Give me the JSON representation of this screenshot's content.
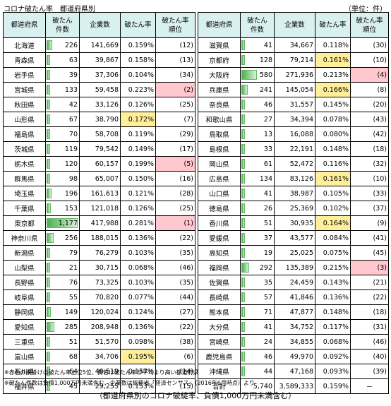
{
  "title": "コロナ破たん率　都道府県別",
  "unit": "（単位：件）",
  "headers": {
    "pref": "都道府県",
    "count": "破たん\n件数",
    "firms": "企業数",
    "rate": "破たん率",
    "rank": "破たん率\n順位"
  },
  "max_count": 1177,
  "left_rows": [
    {
      "pref": "北海道",
      "count": "226",
      "count_value": 226,
      "firms": "141,669",
      "rate": "0.159%",
      "rank": "(12)",
      "hl": ""
    },
    {
      "pref": "青森県",
      "count": "63",
      "count_value": 63,
      "firms": "39,867",
      "rate": "0.158%",
      "rank": "(13)",
      "hl": ""
    },
    {
      "pref": "岩手県",
      "count": "39",
      "count_value": 39,
      "firms": "37,306",
      "rate": "0.104%",
      "rank": "(34)",
      "hl": ""
    },
    {
      "pref": "宮城県",
      "count": "133",
      "count_value": 133,
      "firms": "59,458",
      "rate": "0.223%",
      "rank": "(2)",
      "hl": "pink"
    },
    {
      "pref": "秋田県",
      "count": "42",
      "count_value": 42,
      "firms": "33,126",
      "rate": "0.126%",
      "rank": "(25)",
      "hl": ""
    },
    {
      "pref": "山形県",
      "count": "67",
      "count_value": 67,
      "firms": "38,790",
      "rate": "0.172%",
      "rank": "(7)",
      "hl": "yellow"
    },
    {
      "pref": "福島県",
      "count": "70",
      "count_value": 70,
      "firms": "58,708",
      "rate": "0.119%",
      "rank": "(29)",
      "hl": ""
    },
    {
      "pref": "茨城県",
      "count": "119",
      "count_value": 119,
      "firms": "79,542",
      "rate": "0.149%",
      "rank": "(17)",
      "hl": ""
    },
    {
      "pref": "栃木県",
      "count": "120",
      "count_value": 120,
      "firms": "60,157",
      "rate": "0.199%",
      "rank": "(5)",
      "hl": "pink"
    },
    {
      "pref": "群馬県",
      "count": "98",
      "count_value": 98,
      "firms": "65,007",
      "rate": "0.150%",
      "rank": "(16)",
      "hl": ""
    },
    {
      "pref": "埼玉県",
      "count": "196",
      "count_value": 196,
      "firms": "161,613",
      "rate": "0.121%",
      "rank": "(28)",
      "hl": ""
    },
    {
      "pref": "千葉県",
      "count": "153",
      "count_value": 153,
      "firms": "121,018",
      "rate": "0.126%",
      "rank": "(25)",
      "hl": ""
    },
    {
      "pref": "東京都",
      "count": "1,177",
      "count_value": 1177,
      "firms": "417,988",
      "rate": "0.281%",
      "rank": "(1)",
      "hl": "pink"
    },
    {
      "pref": "神奈川県",
      "count": "256",
      "count_value": 256,
      "firms": "188,015",
      "rate": "0.136%",
      "rank": "(22)",
      "hl": ""
    },
    {
      "pref": "新潟県",
      "count": "79",
      "count_value": 79,
      "firms": "76,279",
      "rate": "0.103%",
      "rank": "(35)",
      "hl": ""
    },
    {
      "pref": "山梨県",
      "count": "21",
      "count_value": 21,
      "firms": "30,715",
      "rate": "0.068%",
      "rank": "(46)",
      "hl": ""
    },
    {
      "pref": "長野県",
      "count": "76",
      "count_value": 76,
      "firms": "73,325",
      "rate": "0.103%",
      "rank": "(35)",
      "hl": ""
    },
    {
      "pref": "岐阜県",
      "count": "55",
      "count_value": 55,
      "firms": "70,820",
      "rate": "0.077%",
      "rank": "(44)",
      "hl": ""
    },
    {
      "pref": "静岡県",
      "count": "149",
      "count_value": 149,
      "firms": "120,024",
      "rate": "0.124%",
      "rank": "(27)",
      "hl": ""
    },
    {
      "pref": "愛知県",
      "count": "285",
      "count_value": 285,
      "firms": "208,948",
      "rate": "0.136%",
      "rank": "(22)",
      "hl": ""
    },
    {
      "pref": "三重県",
      "count": "51",
      "count_value": 51,
      "firms": "51,570",
      "rate": "0.098%",
      "rank": "(38)",
      "hl": ""
    },
    {
      "pref": "富山県",
      "count": "68",
      "count_value": 68,
      "firms": "34,706",
      "rate": "0.195%",
      "rank": "(6)",
      "hl": "yellow"
    },
    {
      "pref": "石川県",
      "count": "64",
      "count_value": 64,
      "firms": "40,519",
      "rate": "0.157%",
      "rank": "(14)",
      "hl": ""
    },
    {
      "pref": "福井県",
      "count": "45",
      "count_value": 45,
      "firms": "29,255",
      "rate": "0.153%",
      "rank": "(15)",
      "hl": ""
    }
  ],
  "right_rows": [
    {
      "pref": "滋賀県",
      "count": "41",
      "count_value": 41,
      "firms": "34,667",
      "rate": "0.118%",
      "rank": "(30)",
      "hl": ""
    },
    {
      "pref": "京都府",
      "count": "128",
      "count_value": 128,
      "firms": "79,214",
      "rate": "0.161%",
      "rank": "(10)",
      "hl": "yellow"
    },
    {
      "pref": "大阪府",
      "count": "580",
      "count_value": 580,
      "firms": "271,936",
      "rate": "0.213%",
      "rank": "(4)",
      "hl": "pink"
    },
    {
      "pref": "兵庫県",
      "count": "241",
      "count_value": 241,
      "firms": "145,054",
      "rate": "0.166%",
      "rank": "(8)",
      "hl": "yellow"
    },
    {
      "pref": "奈良県",
      "count": "46",
      "count_value": 46,
      "firms": "31,557",
      "rate": "0.145%",
      "rank": "(20)",
      "hl": ""
    },
    {
      "pref": "和歌山県",
      "count": "27",
      "count_value": 27,
      "firms": "34,394",
      "rate": "0.078%",
      "rank": "(43)",
      "hl": ""
    },
    {
      "pref": "鳥取県",
      "count": "13",
      "count_value": 13,
      "firms": "16,088",
      "rate": "0.080%",
      "rank": "(42)",
      "hl": ""
    },
    {
      "pref": "島根県",
      "count": "33",
      "count_value": 33,
      "firms": "22,191",
      "rate": "0.148%",
      "rank": "(18)",
      "hl": ""
    },
    {
      "pref": "岡山県",
      "count": "61",
      "count_value": 61,
      "firms": "52,472",
      "rate": "0.116%",
      "rank": "(32)",
      "hl": ""
    },
    {
      "pref": "広島県",
      "count": "134",
      "count_value": 134,
      "firms": "83,126",
      "rate": "0.161%",
      "rank": "(10)",
      "hl": "yellow"
    },
    {
      "pref": "山口県",
      "count": "41",
      "count_value": 41,
      "firms": "38,987",
      "rate": "0.105%",
      "rank": "(33)",
      "hl": ""
    },
    {
      "pref": "徳島県",
      "count": "26",
      "count_value": 26,
      "firms": "25,369",
      "rate": "0.102%",
      "rank": "(37)",
      "hl": ""
    },
    {
      "pref": "香川県",
      "count": "51",
      "count_value": 51,
      "firms": "30,935",
      "rate": "0.164%",
      "rank": "(9)",
      "hl": "yellow"
    },
    {
      "pref": "愛媛県",
      "count": "37",
      "count_value": 37,
      "firms": "43,577",
      "rate": "0.084%",
      "rank": "(41)",
      "hl": ""
    },
    {
      "pref": "高知県",
      "count": "19",
      "count_value": 19,
      "firms": "25,025",
      "rate": "0.075%",
      "rank": "(45)",
      "hl": ""
    },
    {
      "pref": "福岡県",
      "count": "292",
      "count_value": 292,
      "firms": "135,389",
      "rate": "0.215%",
      "rank": "(3)",
      "hl": "pink"
    },
    {
      "pref": "佐賀県",
      "count": "35",
      "count_value": 35,
      "firms": "24,459",
      "rate": "0.143%",
      "rank": "(21)",
      "hl": ""
    },
    {
      "pref": "長崎県",
      "count": "57",
      "count_value": 57,
      "firms": "41,846",
      "rate": "0.136%",
      "rank": "(22)",
      "hl": ""
    },
    {
      "pref": "熊本県",
      "count": "71",
      "count_value": 71,
      "firms": "47,877",
      "rate": "0.148%",
      "rank": "(18)",
      "hl": ""
    },
    {
      "pref": "大分県",
      "count": "41",
      "count_value": 41,
      "firms": "34,752",
      "rate": "0.117%",
      "rank": "(31)",
      "hl": ""
    },
    {
      "pref": "宮崎県",
      "count": "24",
      "count_value": 24,
      "firms": "34,855",
      "rate": "0.068%",
      "rank": "(46)",
      "hl": ""
    },
    {
      "pref": "鹿児島県",
      "count": "46",
      "count_value": 46,
      "firms": "49,970",
      "rate": "0.092%",
      "rank": "(40)",
      "hl": ""
    },
    {
      "pref": "沖縄県",
      "count": "44",
      "count_value": 44,
      "firms": "47,168",
      "rate": "0.093%",
      "rank": "(39)",
      "hl": ""
    }
  ],
  "total": {
    "pref": "合計",
    "count": "5,740",
    "firms": "3,589,333",
    "rate": "0.159%",
    "rank": "－"
  },
  "notes": [
    "※赤色の網掛けは破たん率上位5位、黄色は破たん率が平均より高い都道府県",
    "※破たん件数は負債1,000万円未満含む、企業数は総務省「経済センサス」（2016年6月時点）より"
  ],
  "caption": "（都道府県別のコロナ破綻率、負債1,000万円未満含む）",
  "colors": {
    "yellow": "#ffef9a",
    "pink": "#ffc7ce",
    "header": "#d9f0f0",
    "bar": "#4caf50"
  }
}
